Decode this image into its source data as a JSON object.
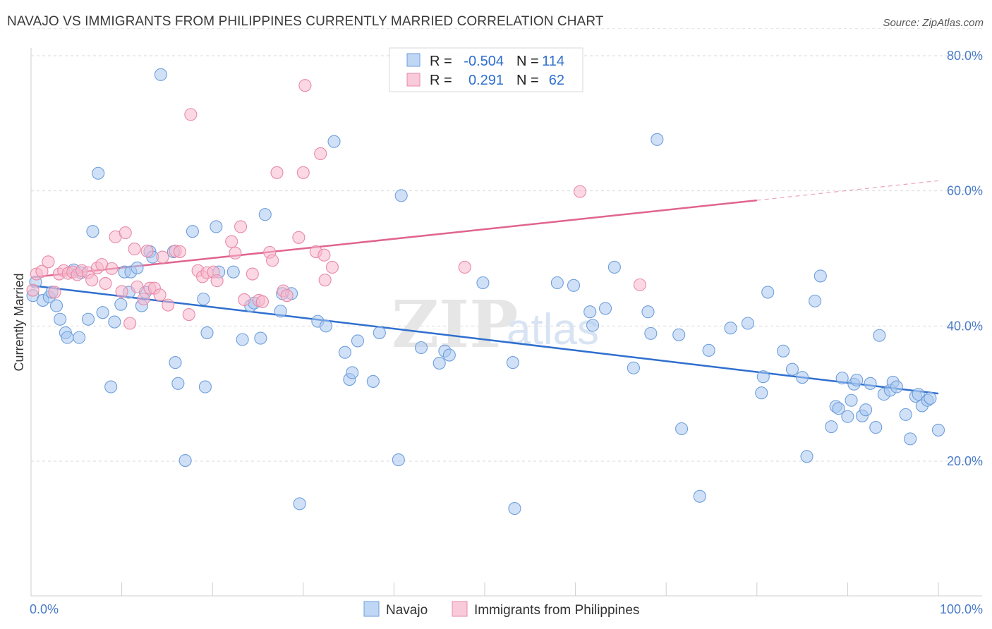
{
  "title": "NAVAJO VS IMMIGRANTS FROM PHILIPPINES CURRENTLY MARRIED CORRELATION CHART",
  "source": "Source: ZipAtlas.com",
  "watermark": {
    "zip": "ZIP",
    "atlas": "atlas"
  },
  "legend": {
    "r_label": "R =",
    "n_label": "N =",
    "rows": [
      {
        "r": "-0.504",
        "n": "114",
        "color": "#a9c8f0"
      },
      {
        "r": "0.291",
        "n": "62",
        "color": "#f7b8cc"
      }
    ]
  },
  "chart_data": {
    "type": "scatter",
    "title": "NAVAJO VS IMMIGRANTS FROM PHILIPPINES CURRENTLY MARRIED CORRELATION CHART",
    "xlabel": "",
    "ylabel": "Currently Married",
    "xlim": [
      0,
      100
    ],
    "ylim": [
      0,
      84
    ],
    "x_tick_labels": [
      "0.0%",
      "100.0%"
    ],
    "y_ticks": [
      20,
      40,
      60,
      80
    ],
    "y_tick_labels": [
      "20.0%",
      "40.0%",
      "60.0%",
      "80.0%"
    ],
    "grid": true,
    "legend_position": "top-center",
    "series": [
      {
        "name": "Navajo",
        "color": "#a9c8f0",
        "stroke": "#6f9fdc",
        "trend_color": "#2f6fce",
        "trend": {
          "x0": 0,
          "y0": 46.0,
          "x1": 100,
          "y1": 30.0
        },
        "points": [
          [
            0.2,
            44.5
          ],
          [
            0.5,
            46.5
          ],
          [
            1.3,
            43.8
          ],
          [
            2,
            44.3
          ],
          [
            2.3,
            45
          ],
          [
            2.8,
            43
          ],
          [
            3.2,
            41
          ],
          [
            3.8,
            39
          ],
          [
            4,
            38.3
          ],
          [
            5.3,
            38.3
          ],
          [
            4.7,
            48.3
          ],
          [
            5.5,
            47.9
          ],
          [
            6.3,
            41
          ],
          [
            6.8,
            54
          ],
          [
            7.4,
            62.6
          ],
          [
            7.9,
            42
          ],
          [
            8.8,
            31
          ],
          [
            9.2,
            40.6
          ],
          [
            9.9,
            43.2
          ],
          [
            10.3,
            48
          ],
          [
            10.8,
            45
          ],
          [
            11,
            48
          ],
          [
            11.7,
            48.6
          ],
          [
            12.2,
            43
          ],
          [
            12.6,
            45
          ],
          [
            13.1,
            51
          ],
          [
            13.4,
            50.2
          ],
          [
            14.3,
            77.2
          ],
          [
            15.7,
            51
          ],
          [
            15.9,
            34.6
          ],
          [
            16.2,
            31.5
          ],
          [
            17,
            20.1
          ],
          [
            17.8,
            54
          ],
          [
            19,
            44
          ],
          [
            19.2,
            31
          ],
          [
            19.4,
            39
          ],
          [
            20.4,
            54.7
          ],
          [
            20.7,
            48
          ],
          [
            22.3,
            48
          ],
          [
            23.3,
            38
          ],
          [
            24.2,
            43
          ],
          [
            24.6,
            43.4
          ],
          [
            25.3,
            38.2
          ],
          [
            25.8,
            56.5
          ],
          [
            27.5,
            42.2
          ],
          [
            27.7,
            44.8
          ],
          [
            28.7,
            44.8
          ],
          [
            29.6,
            13.7
          ],
          [
            31.6,
            40.7
          ],
          [
            32.5,
            40
          ],
          [
            33.4,
            67.3
          ],
          [
            34.6,
            36.1
          ],
          [
            35.1,
            32.1
          ],
          [
            35.4,
            33.1
          ],
          [
            36,
            37.8
          ],
          [
            37.7,
            31.8
          ],
          [
            38.4,
            39
          ],
          [
            40.5,
            20.2
          ],
          [
            40.8,
            59.3
          ],
          [
            43,
            36.8
          ],
          [
            45,
            34.5
          ],
          [
            45.6,
            36.3
          ],
          [
            46.1,
            35.7
          ],
          [
            49.8,
            46.4
          ],
          [
            53.1,
            34.6
          ],
          [
            53.3,
            13
          ],
          [
            58,
            46.4
          ],
          [
            59.8,
            46
          ],
          [
            61.6,
            42.1
          ],
          [
            61.9,
            40.1
          ],
          [
            63.3,
            42.6
          ],
          [
            64.3,
            48.7
          ],
          [
            66.4,
            33.8
          ],
          [
            68,
            42.1
          ],
          [
            68.3,
            38.9
          ],
          [
            69,
            67.6
          ],
          [
            71.4,
            38.7
          ],
          [
            71.7,
            24.8
          ],
          [
            73.7,
            14.8
          ],
          [
            74.7,
            36.4
          ],
          [
            77.1,
            39.7
          ],
          [
            79,
            40.4
          ],
          [
            80.7,
            32.5
          ],
          [
            80.5,
            30.1
          ],
          [
            81.2,
            45
          ],
          [
            82.9,
            36.3
          ],
          [
            83.9,
            33.6
          ],
          [
            85,
            32.4
          ],
          [
            85.5,
            20.7
          ],
          [
            86.4,
            43.7
          ],
          [
            87,
            47.4
          ],
          [
            88.2,
            25.1
          ],
          [
            88.7,
            28.1
          ],
          [
            89,
            27.8
          ],
          [
            89.4,
            32.3
          ],
          [
            90,
            26.6
          ],
          [
            90.4,
            29
          ],
          [
            90.7,
            31.4
          ],
          [
            91,
            32
          ],
          [
            91.6,
            26.7
          ],
          [
            92,
            27.6
          ],
          [
            92.5,
            31.5
          ],
          [
            93.1,
            25
          ],
          [
            93.5,
            38.6
          ],
          [
            94,
            29.9
          ],
          [
            94.7,
            30.5
          ],
          [
            95,
            31.7
          ],
          [
            95.4,
            31
          ],
          [
            96.4,
            26.9
          ],
          [
            96.9,
            23.3
          ],
          [
            97.5,
            29.6
          ],
          [
            97.8,
            29.9
          ],
          [
            98.2,
            28.2
          ],
          [
            98.8,
            29
          ],
          [
            99.1,
            29.3
          ],
          [
            100,
            24.6
          ]
        ]
      },
      {
        "name": "Immigrants from Philippines",
        "color": "#f7b8cc",
        "stroke": "#e88aa9",
        "trend_color": "#e0648f",
        "trend": {
          "x0": 0,
          "y0": 47.2,
          "x1": 80,
          "y1": 58.6,
          "dash_to_x": 100,
          "dash_to_y": 61.5
        },
        "points": [
          [
            0.2,
            45.3
          ],
          [
            0.6,
            47.7
          ],
          [
            1.2,
            48.1
          ],
          [
            1.9,
            49.5
          ],
          [
            2.6,
            45
          ],
          [
            3.1,
            47.7
          ],
          [
            3.6,
            48.2
          ],
          [
            4.1,
            47.8
          ],
          [
            4.6,
            48
          ],
          [
            5.1,
            47.6
          ],
          [
            5.6,
            48.2
          ],
          [
            6.3,
            47.9
          ],
          [
            6.7,
            46.8
          ],
          [
            7.3,
            48.6
          ],
          [
            7.8,
            49.1
          ],
          [
            8.2,
            46.3
          ],
          [
            8.9,
            48.5
          ],
          [
            9.3,
            53.2
          ],
          [
            10,
            45.1
          ],
          [
            10.4,
            53.8
          ],
          [
            10.9,
            40.4
          ],
          [
            11.4,
            51.4
          ],
          [
            11.7,
            45.8
          ],
          [
            12.4,
            44
          ],
          [
            12.8,
            51.1
          ],
          [
            13.1,
            45.6
          ],
          [
            13.6,
            45.6
          ],
          [
            14.2,
            44.6
          ],
          [
            14.5,
            50.2
          ],
          [
            15.1,
            43.1
          ],
          [
            15.9,
            51.1
          ],
          [
            16.4,
            51
          ],
          [
            17.4,
            41.7
          ],
          [
            17.6,
            71.3
          ],
          [
            18.4,
            48.2
          ],
          [
            18.9,
            47.3
          ],
          [
            19.4,
            47.9
          ],
          [
            20.1,
            48
          ],
          [
            20.5,
            46.7
          ],
          [
            22.1,
            52.5
          ],
          [
            22.5,
            50.8
          ],
          [
            23.1,
            54.7
          ],
          [
            23.5,
            43.9
          ],
          [
            24.4,
            47.7
          ],
          [
            25.1,
            43.8
          ],
          [
            25.5,
            43.6
          ],
          [
            26.3,
            50.9
          ],
          [
            26.6,
            49.7
          ],
          [
            27.1,
            62.7
          ],
          [
            27.8,
            45.2
          ],
          [
            28.2,
            44.5
          ],
          [
            29.5,
            53.1
          ],
          [
            30,
            62.7
          ],
          [
            30.2,
            75.6
          ],
          [
            31.4,
            51
          ],
          [
            31.9,
            65.5
          ],
          [
            32.3,
            50.5
          ],
          [
            32.4,
            46.8
          ],
          [
            33.2,
            48.7
          ],
          [
            47.8,
            48.7
          ],
          [
            67.1,
            46.1
          ],
          [
            60.5,
            59.9
          ]
        ]
      }
    ]
  }
}
